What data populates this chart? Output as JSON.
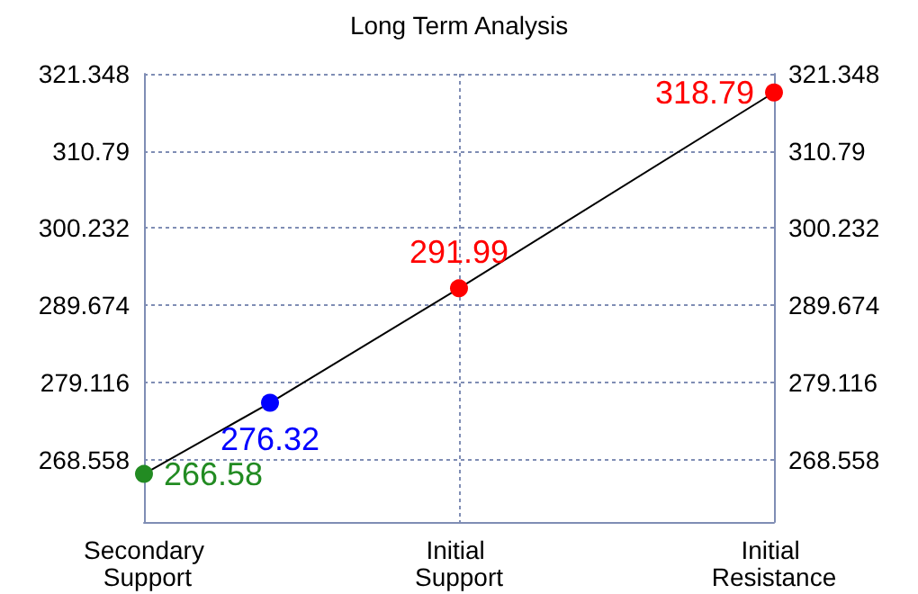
{
  "chart_data": {
    "type": "line",
    "title": "Long Term Analysis",
    "categories": [
      "Secondary Support",
      null,
      null,
      null,
      null,
      "Initial Support",
      null,
      null,
      null,
      null,
      "Initial Resistance"
    ],
    "series": [
      {
        "color": "#000000",
        "colors": [
          "#228b22",
          null,
          "#0000ff",
          null,
          null,
          "#ff0000",
          null,
          null,
          null,
          null,
          "#ff0000"
        ],
        "values": [
          266.58,
          null,
          276.32,
          null,
          null,
          291.99,
          null,
          null,
          null,
          null,
          318.79
        ]
      }
    ],
    "ylim": [
      260,
      321.348
    ],
    "yticks": [
      268.558,
      279.116,
      289.674,
      300.232,
      310.79,
      321.348
    ],
    "y2lim": [
      260,
      321.348
    ],
    "y2ticks": [
      268.558,
      279.116,
      289.674,
      300.232,
      310.79,
      321.348
    ],
    "data_labels": true,
    "marker": "circle",
    "line_style": "solid",
    "grid": true
  }
}
